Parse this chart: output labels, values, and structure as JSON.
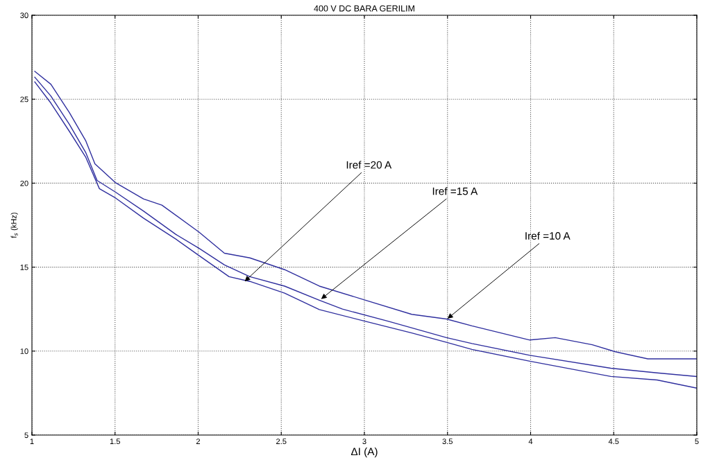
{
  "chart_data": {
    "type": "line",
    "title": "400 V DC BARA GERILIM",
    "xlabel": "ΔI (A)",
    "ylabel": "f$_{s}$ (kHz)",
    "series": [
      {
        "color": "#2e2e9e",
        "x": [
          1.017,
          1.114,
          1.225,
          1.323,
          1.379,
          1.504,
          1.671,
          1.782,
          2.005,
          2.158,
          2.311,
          2.52,
          2.729,
          3.007,
          3.285,
          3.494,
          3.647,
          3.995,
          4.148,
          4.371,
          4.51,
          4.705,
          4.997
        ],
        "values": [
          26.66,
          25.89,
          24.21,
          22.54,
          21.15,
          20.02,
          19.06,
          18.69,
          17.09,
          15.83,
          15.55,
          14.85,
          13.87,
          13.03,
          12.19,
          11.91,
          11.5,
          10.66,
          10.8,
          10.38,
          9.96,
          9.54,
          9.54
        ]
      },
      {
        "color": "#2e2e9e",
        "x": [
          1.017,
          1.114,
          1.225,
          1.323,
          1.392,
          1.504,
          1.671,
          1.866,
          2.005,
          2.158,
          2.311,
          2.52,
          2.729,
          2.868,
          3.146,
          3.494,
          3.647,
          3.995,
          4.482,
          4.761,
          4.997
        ],
        "values": [
          26.31,
          25.19,
          23.51,
          21.84,
          20.16,
          19.46,
          18.34,
          16.95,
          16.12,
          15.13,
          14.43,
          13.87,
          13.03,
          12.5,
          11.77,
          10.8,
          10.45,
          9.75,
          8.98,
          8.7,
          8.49
        ]
      },
      {
        "color": "#2e2e9e",
        "x": [
          1.017,
          1.114,
          1.225,
          1.323,
          1.406,
          1.504,
          1.671,
          1.866,
          2.005,
          2.186,
          2.311,
          2.52,
          2.729,
          3.007,
          3.285,
          3.494,
          3.647,
          3.995,
          4.482,
          4.761,
          4.997
        ],
        "values": [
          26.03,
          24.77,
          23.09,
          21.56,
          19.67,
          19.11,
          17.92,
          16.67,
          15.69,
          14.43,
          14.15,
          13.45,
          12.47,
          11.77,
          11.08,
          10.52,
          10.1,
          9.4,
          8.49,
          8.28,
          7.8
        ]
      }
    ],
    "annotations": [
      {
        "text": "Iref =20 A",
        "x": 2.28,
        "y": 14.15
      },
      {
        "text": "Iref =15 A",
        "x": 2.74,
        "y": 13.1
      },
      {
        "text": "Iref =10 A",
        "x": 3.5,
        "y": 11.93
      }
    ],
    "xlim": [
      1,
      5
    ],
    "xticks": [
      1,
      1.5,
      2,
      2.5,
      3,
      3.5,
      4,
      4.5,
      5
    ],
    "ylim": [
      5,
      30
    ],
    "yticks": [
      5,
      10,
      15,
      20,
      25,
      30
    ],
    "grid": true,
    "line_style": "solid",
    "marker": "none"
  }
}
